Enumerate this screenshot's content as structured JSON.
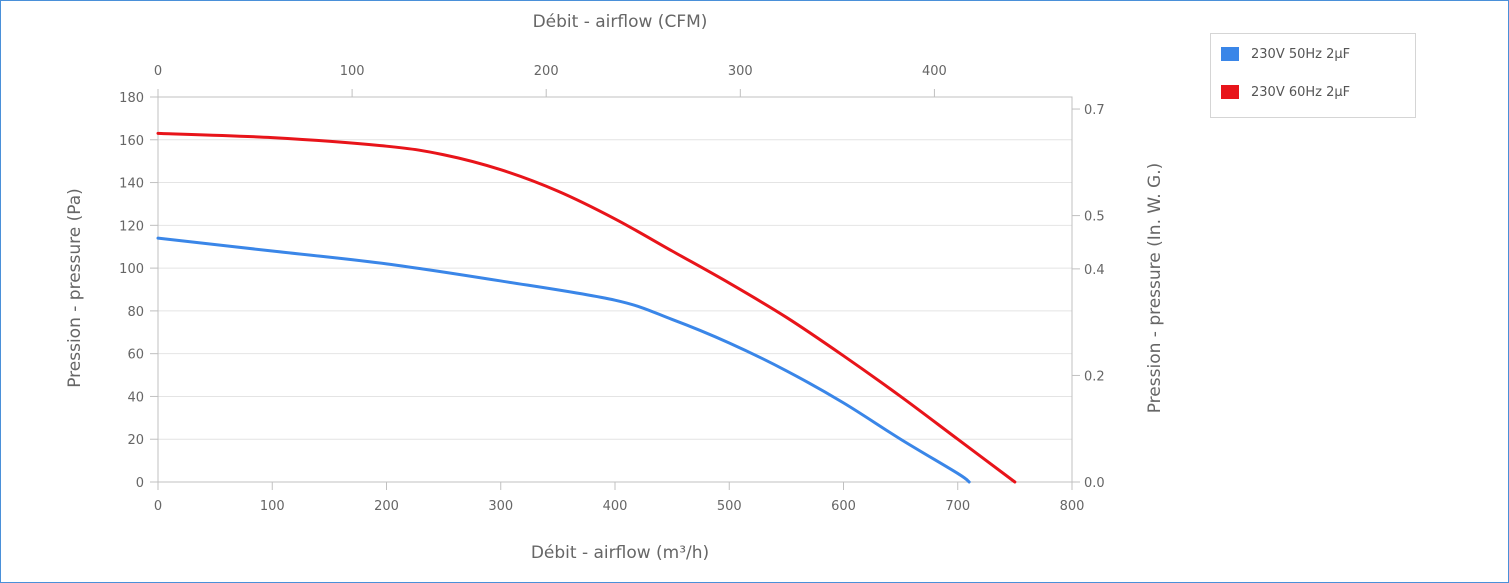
{
  "chart_data": {
    "type": "line",
    "x_bottom": {
      "label": "Débit - airflow (m³/h)",
      "range": [
        0,
        800
      ],
      "ticks": [
        "0",
        "100",
        "200",
        "300",
        "400",
        "500",
        "600",
        "700",
        "800"
      ]
    },
    "x_top": {
      "label": "Débit - airflow (CFM)",
      "range": [
        0,
        470.88
      ],
      "ticks": [
        "0",
        "100",
        "200",
        "300",
        "400"
      ]
    },
    "y_left": {
      "label": "Pression - pressure (Pa)",
      "range": [
        0,
        180
      ],
      "ticks": [
        "0",
        "20",
        "40",
        "60",
        "80",
        "100",
        "120",
        "140",
        "160",
        "180"
      ]
    },
    "y_right": {
      "label": "Pression - pressure (In. W. G.)",
      "range": [
        0,
        0.7226
      ],
      "ticks": [
        "0.0",
        "0.2",
        "0.4",
        "0.5",
        "0.7"
      ]
    },
    "grid": true,
    "legend_position": "top-right",
    "series": [
      {
        "name": "230V 50Hz 2μF",
        "color": "#3a86e8",
        "x": [
          0,
          100,
          200,
          300,
          400,
          450,
          500,
          550,
          600,
          650,
          700,
          710
        ],
        "y": [
          114,
          108,
          102,
          94,
          85,
          76,
          65,
          52,
          37,
          20,
          4,
          0
        ]
      },
      {
        "name": "230V 60Hz 2μF",
        "color": "#e8141a",
        "x": [
          0,
          100,
          200,
          250,
          300,
          350,
          400,
          450,
          500,
          550,
          600,
          650,
          700,
          750
        ],
        "y": [
          163,
          161,
          157,
          153,
          146,
          136,
          123,
          108,
          93,
          77,
          59,
          40,
          20,
          0
        ]
      }
    ]
  }
}
